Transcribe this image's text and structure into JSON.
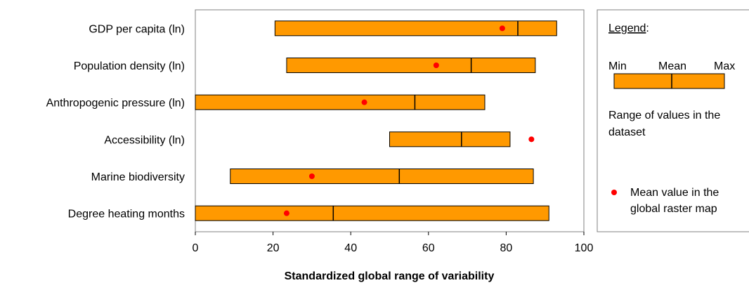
{
  "chart_data": {
    "type": "range-bar",
    "xlabel": "Standardized global range of variability",
    "xlim": [
      0,
      100
    ],
    "xticks": [
      0,
      20,
      40,
      60,
      80,
      100
    ],
    "grid": false,
    "colors": {
      "bar_fill": "#ff9900",
      "bar_stroke": "#000000",
      "dot": "#ff0000",
      "frame": "#808080"
    },
    "categories": [
      "GDP per capita (ln)",
      "Population density (ln)",
      "Anthropogenic pressure (ln)",
      "Accessibility (ln)",
      "Marine biodiversity",
      "Degree heating months"
    ],
    "series": [
      {
        "name": "Min",
        "values": [
          20.5,
          23.5,
          0,
          50,
          9,
          0
        ]
      },
      {
        "name": "Mean",
        "values": [
          83,
          71,
          56.5,
          68.5,
          52.5,
          35.5
        ]
      },
      {
        "name": "Max",
        "values": [
          93,
          87.5,
          74.5,
          81,
          87,
          91
        ]
      },
      {
        "name": "Mean value in the global raster map",
        "values": [
          79,
          62,
          43.5,
          86.5,
          30,
          23.5
        ]
      }
    ],
    "legend": {
      "title": "Legend",
      "title_suffix": ":",
      "min_label": "Min",
      "mean_label": "Mean",
      "max_label": "Max",
      "range_desc_line1": "Range of values in the",
      "range_desc_line2": "dataset",
      "dot_desc_line1": "Mean value in the",
      "dot_desc_line2": "global raster map",
      "placement": "right"
    }
  }
}
